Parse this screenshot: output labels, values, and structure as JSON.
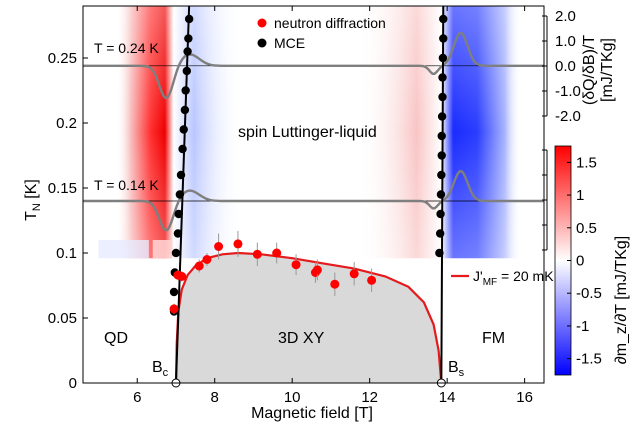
{
  "chart_data": {
    "type": "scatter",
    "xlabel": "Magnetic field [T]",
    "ylabel": "T",
    "ylabel_sub": "N",
    "ylabel_unit": " [K]",
    "xlim": [
      4.6,
      16.5
    ],
    "ylim": [
      0,
      0.29
    ],
    "x_ticks": [
      6,
      8,
      10,
      12,
      14,
      16
    ],
    "y_ticks": [
      0,
      0.05,
      0.1,
      0.15,
      0.2,
      0.25
    ],
    "y_tick_labels": [
      "0",
      "0.05",
      "0.1",
      "0.15",
      "0.2",
      "0.25"
    ],
    "right_axis_top": {
      "label": "(δQ/δB)/T",
      "unit": "[mJ/TKg]",
      "ticks": [
        2.0,
        1.0,
        0.0,
        -1.0,
        -2.0
      ],
      "tick_labels": [
        "2.0",
        "1.0",
        "0.0",
        "-1.0",
        "-2.0"
      ]
    },
    "colorbar": {
      "label": "∂m_z/∂T [mJ/TKg]",
      "ticks": [
        1.5,
        1,
        0.5,
        0,
        -0.5,
        -1,
        -1.5
      ],
      "tick_labels": [
        "1.5",
        "1",
        "0.5",
        "0",
        "-0.5",
        "-1",
        "-1.5"
      ],
      "range": [
        -1.75,
        1.75
      ],
      "color_positive": "#ff0000",
      "color_negative": "#0000ff"
    },
    "legend": {
      "placement": "top-center",
      "entries": [
        {
          "label": "neutron diffraction",
          "color": "#ff0000"
        },
        {
          "label": "MCE",
          "color": "#000000"
        }
      ]
    },
    "fit_legend": {
      "prefix": "J'",
      "sub": "MF",
      "suffix": " = 20 mK",
      "color": "#e41a1c"
    },
    "annotations": {
      "temp_high": "T = 0.24 K",
      "temp_low": "T = 0.14 K",
      "luttinger": "spin Luttinger-liquid",
      "qd": "QD",
      "xy": "3D XY",
      "fm": "FM",
      "bc": "B",
      "bc_sub": "c",
      "bs": "B",
      "bs_sub": "s"
    },
    "critical_fields": {
      "bc": 7.0,
      "bs": 13.85
    },
    "series": [
      {
        "name": "neutron diffraction",
        "points": [
          {
            "x": 6.95,
            "y": 0.057,
            "err": 0.004
          },
          {
            "x": 7.05,
            "y": 0.083,
            "err": 0.004
          },
          {
            "x": 7.15,
            "y": 0.082,
            "err": 0.004
          },
          {
            "x": 7.6,
            "y": 0.09,
            "err": 0.005
          },
          {
            "x": 7.8,
            "y": 0.095,
            "err": 0.005
          },
          {
            "x": 8.1,
            "y": 0.105,
            "err": 0.01
          },
          {
            "x": 8.6,
            "y": 0.107,
            "err": 0.01
          },
          {
            "x": 9.1,
            "y": 0.099,
            "err": 0.009
          },
          {
            "x": 9.6,
            "y": 0.1,
            "err": 0.008
          },
          {
            "x": 10.1,
            "y": 0.091,
            "err": 0.008
          },
          {
            "x": 10.6,
            "y": 0.085,
            "err": 0.008
          },
          {
            "x": 10.65,
            "y": 0.087,
            "err": 0.008
          },
          {
            "x": 11.1,
            "y": 0.076,
            "err": 0.009
          },
          {
            "x": 11.6,
            "y": 0.084,
            "err": 0.009
          },
          {
            "x": 12.05,
            "y": 0.079,
            "err": 0.009
          }
        ]
      },
      {
        "name": "MCE",
        "points": [
          {
            "x": 6.95,
            "y": 0.055
          },
          {
            "x": 6.95,
            "y": 0.07
          },
          {
            "x": 6.97,
            "y": 0.085
          },
          {
            "x": 7.0,
            "y": 0.1
          },
          {
            "x": 7.05,
            "y": 0.115
          },
          {
            "x": 7.07,
            "y": 0.13
          },
          {
            "x": 7.1,
            "y": 0.145
          },
          {
            "x": 7.13,
            "y": 0.16
          },
          {
            "x": 7.17,
            "y": 0.18
          },
          {
            "x": 7.2,
            "y": 0.195
          },
          {
            "x": 7.23,
            "y": 0.21
          },
          {
            "x": 7.25,
            "y": 0.225
          },
          {
            "x": 7.28,
            "y": 0.24
          },
          {
            "x": 7.3,
            "y": 0.255
          },
          {
            "x": 7.32,
            "y": 0.265
          },
          {
            "x": 7.34,
            "y": 0.28
          },
          {
            "x": 13.8,
            "y": 0.1
          },
          {
            "x": 13.82,
            "y": 0.115
          },
          {
            "x": 13.83,
            "y": 0.13
          },
          {
            "x": 13.84,
            "y": 0.145
          },
          {
            "x": 13.85,
            "y": 0.16
          },
          {
            "x": 13.86,
            "y": 0.175
          },
          {
            "x": 13.86,
            "y": 0.19
          },
          {
            "x": 13.87,
            "y": 0.205
          },
          {
            "x": 13.88,
            "y": 0.22
          },
          {
            "x": 13.88,
            "y": 0.235
          },
          {
            "x": 13.89,
            "y": 0.25
          },
          {
            "x": 13.9,
            "y": 0.265
          },
          {
            "x": 13.9,
            "y": 0.28
          }
        ]
      }
    ],
    "phase_boundary_fit": {
      "name": "J'MF = 20 mK",
      "x": [
        7.0,
        7.02,
        7.06,
        7.15,
        7.3,
        7.5,
        7.8,
        8.2,
        8.6,
        9.2,
        10.0,
        10.8,
        11.6,
        12.4,
        13.0,
        13.4,
        13.65,
        13.78,
        13.85
      ],
      "y": [
        0.0,
        0.03,
        0.055,
        0.072,
        0.083,
        0.09,
        0.096,
        0.099,
        0.1,
        0.099,
        0.096,
        0.092,
        0.088,
        0.082,
        0.074,
        0.062,
        0.045,
        0.025,
        0.0
      ]
    }
  }
}
